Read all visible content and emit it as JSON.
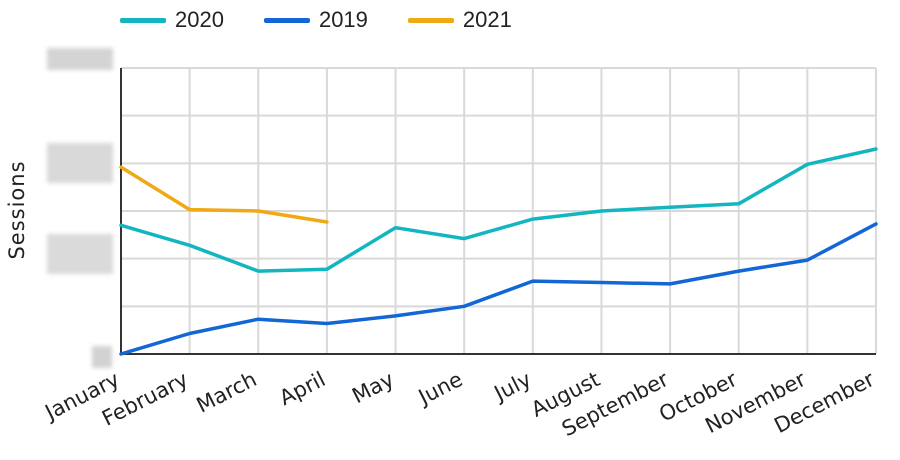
{
  "chart_data": {
    "type": "line",
    "title": "",
    "xlabel": "",
    "ylabel": "Sessions",
    "ylim": [
      0,
      6
    ],
    "y_tick_labels_visible": false,
    "grid": true,
    "legend_position": "top-left",
    "categories": [
      "January",
      "February",
      "March",
      "April",
      "May",
      "June",
      "July",
      "August",
      "September",
      "October",
      "November",
      "December"
    ],
    "series": [
      {
        "name": "2020",
        "color": "#13b5c1",
        "values": [
          2.7,
          2.28,
          1.74,
          1.78,
          2.65,
          2.42,
          2.83,
          3.0,
          3.08,
          3.15,
          3.98,
          4.3
        ]
      },
      {
        "name": "2019",
        "color": "#1266d6",
        "values": [
          0.0,
          0.43,
          0.73,
          0.64,
          0.8,
          1.0,
          1.53,
          1.5,
          1.47,
          1.74,
          1.97,
          2.73
        ]
      },
      {
        "name": "2021",
        "color": "#f0a814",
        "values": [
          3.92,
          3.03,
          3.0,
          2.77,
          null,
          null,
          null,
          null,
          null,
          null,
          null,
          null
        ]
      }
    ]
  }
}
